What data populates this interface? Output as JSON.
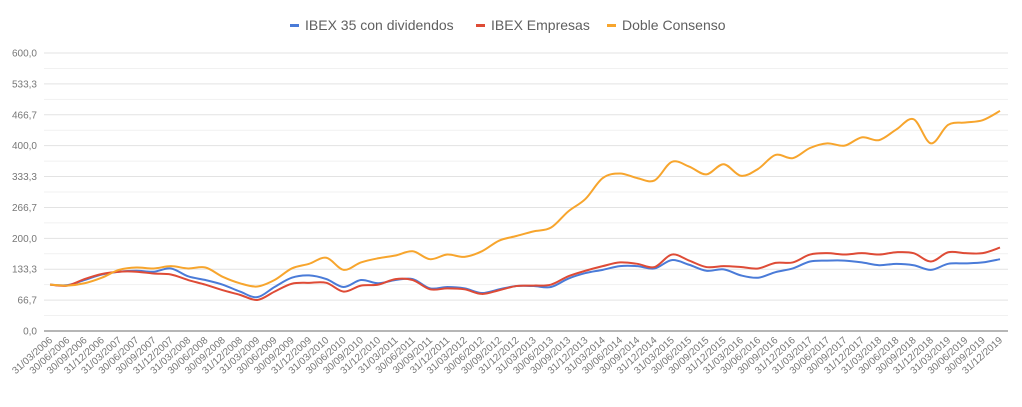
{
  "chart_data": {
    "type": "line",
    "title": "",
    "xlabel": "",
    "ylabel": "",
    "ylim": [
      0,
      600
    ],
    "yticks": [
      "0,0",
      "66,7",
      "133,3",
      "200,0",
      "266,7",
      "333,3",
      "400,0",
      "466,7",
      "533,3",
      "600,0"
    ],
    "grid": true,
    "legend_position": "top",
    "x": [
      "31/03/2006",
      "30/06/2006",
      "30/09/2006",
      "31/12/2006",
      "31/03/2007",
      "30/06/2007",
      "30/09/2007",
      "31/12/2007",
      "31/03/2008",
      "30/06/2008",
      "30/09/2008",
      "31/12/2008",
      "31/03/2009",
      "30/06/2009",
      "30/09/2009",
      "31/12/2009",
      "31/03/2010",
      "30/06/2010",
      "30/09/2010",
      "31/12/2010",
      "31/03/2011",
      "30/06/2011",
      "30/09/2011",
      "31/12/2011",
      "31/03/2012",
      "30/06/2012",
      "30/09/2012",
      "31/12/2012",
      "31/03/2013",
      "30/06/2013",
      "30/09/2013",
      "31/12/2013",
      "31/03/2014",
      "30/06/2014",
      "30/09/2014",
      "31/12/2014",
      "31/03/2015",
      "30/06/2015",
      "30/09/2015",
      "31/12/2015",
      "31/03/2016",
      "30/06/2016",
      "30/09/2016",
      "31/12/2016",
      "31/03/2017",
      "30/06/2017",
      "30/09/2017",
      "31/12/2017",
      "31/03/2018",
      "30/06/2018",
      "30/09/2018",
      "31/12/2018",
      "31/03/2019",
      "30/06/2019",
      "30/09/2019",
      "31/12/2019"
    ],
    "series": [
      {
        "name": "IBEX 35 con dividendos",
        "color": "#4a7bd8",
        "values": [
          100,
          99,
          110,
          122,
          128,
          130,
          128,
          135,
          118,
          110,
          100,
          85,
          73,
          95,
          115,
          120,
          112,
          95,
          110,
          103,
          110,
          112,
          92,
          95,
          92,
          82,
          90,
          97,
          97,
          95,
          113,
          125,
          132,
          140,
          140,
          135,
          153,
          143,
          130,
          133,
          120,
          115,
          127,
          135,
          150,
          152,
          152,
          148,
          142,
          145,
          142,
          132,
          145,
          146,
          148,
          155
        ]
      },
      {
        "name": "IBEX Empresas",
        "color": "#de4b36",
        "values": [
          100,
          98,
          112,
          123,
          128,
          128,
          124,
          122,
          110,
          100,
          88,
          78,
          67,
          85,
          102,
          104,
          104,
          85,
          98,
          100,
          112,
          110,
          90,
          92,
          90,
          80,
          88,
          97,
          98,
          100,
          118,
          130,
          140,
          148,
          145,
          138,
          165,
          152,
          138,
          140,
          138,
          135,
          147,
          148,
          165,
          168,
          165,
          168,
          165,
          170,
          168,
          150,
          170,
          168,
          168,
          180
        ]
      },
      {
        "name": "Doble Consenso",
        "color": "#f7a52d",
        "values": [
          100,
          98,
          103,
          115,
          132,
          137,
          135,
          140,
          135,
          137,
          117,
          103,
          96,
          110,
          135,
          145,
          158,
          132,
          148,
          157,
          163,
          172,
          155,
          165,
          160,
          172,
          195,
          205,
          215,
          223,
          258,
          285,
          330,
          340,
          330,
          325,
          365,
          355,
          338,
          360,
          335,
          350,
          380,
          373,
          395,
          405,
          400,
          418,
          412,
          435,
          457,
          405,
          445,
          450,
          455,
          475
        ]
      }
    ]
  }
}
